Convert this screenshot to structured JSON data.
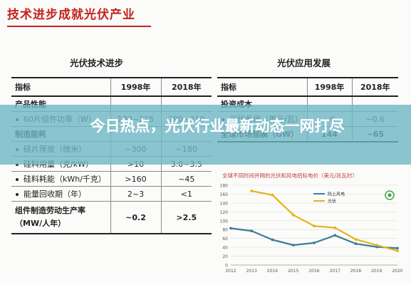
{
  "page": {
    "title": "技术进步成就光伏产业"
  },
  "left_table": {
    "title": "光伏技术进步",
    "header": [
      "指标",
      "1998年",
      "2018年"
    ],
    "rows": [
      {
        "kind": "section",
        "label": "产品性能",
        "v1": "",
        "v2": ""
      },
      {
        "kind": "item",
        "label": "60片组件功率（W）",
        "v1": "190~215",
        "v2": "290~310"
      },
      {
        "kind": "section",
        "label": "制造能耗",
        "v1": "",
        "v2": ""
      },
      {
        "kind": "item",
        "label": "硅片厚度（微米）",
        "v1": "~300",
        "v2": "~180"
      },
      {
        "kind": "item",
        "label": "硅料用量（克/kW）",
        "v1": ">10",
        "v2": "3.0~3.5"
      },
      {
        "kind": "item",
        "label": "硅料耗能（kWh/千克）",
        "v1": ">160",
        "v2": "~45"
      },
      {
        "kind": "item",
        "label": "能量回收期（年）",
        "v1": "2~3",
        "v2": "<1"
      },
      {
        "kind": "footer",
        "label": "组件制造劳动生产率（MW/人年）",
        "v1": "~0.2",
        "v2": ">2.5"
      }
    ]
  },
  "right_table": {
    "title": "光伏应用发展",
    "header": [
      "指标",
      "1998年",
      "2018年"
    ],
    "rows": [
      {
        "kind": "section",
        "label": "投资成本",
        "v1": "",
        "v2": ""
      },
      {
        "kind": "item",
        "label": "光伏系统（美元/瓦）",
        "v1": "~6",
        "v2": "~0.6"
      },
      {
        "kind": "section",
        "label": "全球市场规模（GW）",
        "v1": "144",
        "v2": "~65"
      }
    ]
  },
  "chart_data": {
    "type": "line",
    "title": "全球不同时间并网的光伏和风电招标电价（美元/兆瓦时）",
    "x": [
      "2012",
      "2013",
      "2014",
      "2015",
      "2016",
      "2017",
      "2018",
      "2019",
      "2020"
    ],
    "ylim": [
      0,
      180
    ],
    "yticks": [
      0,
      20,
      40,
      60,
      80,
      100,
      120,
      140,
      160,
      180
    ],
    "series": [
      {
        "name": "陆上风电",
        "color": "#3a7d9a",
        "values": [
          83,
          77,
          57,
          45,
          50,
          67,
          48,
          41,
          38
        ]
      },
      {
        "name": "光伏",
        "color": "#e3b419",
        "values": [
          null,
          167,
          158,
          113,
          88,
          84,
          58,
          45,
          32
        ]
      }
    ]
  },
  "overlay": {
    "headline": "今日热点，光伏行业最新动态一网打尽"
  },
  "colors": {
    "title_red": "#c2231f",
    "overlay_teal": "#6eb6c4"
  }
}
